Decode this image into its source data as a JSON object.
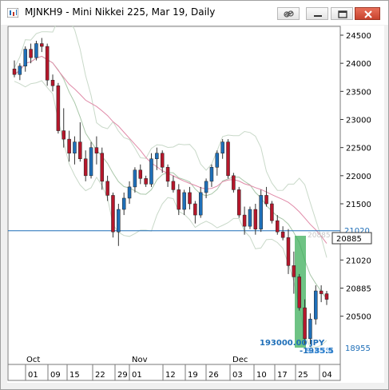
{
  "window": {
    "title": "MJNKH9 - Mini Nikkei 225, Mar 19, Daily",
    "buttons": [
      "link",
      "minimize",
      "restore",
      "close"
    ]
  },
  "chart_data": {
    "type": "candlestick",
    "instrument": "MJNKH9",
    "y_axis": {
      "labels": [
        "24500",
        "24000",
        "23500",
        "23000",
        "22500",
        "22000",
        "21500",
        "21020",
        "20885",
        "20500",
        "20000",
        "19500",
        "18955"
      ],
      "ticks": [
        24500,
        24000,
        23500,
        23000,
        22500,
        22000,
        21500,
        20500,
        20000,
        19500
      ],
      "range": [
        18700,
        24750
      ],
      "current_price": "20885",
      "horizontal_line_label": "21020",
      "horizontal_line_value": 21020,
      "lowest_label": "18955",
      "lowest_value": 18955
    },
    "x_axis": {
      "months": [
        "Oct",
        "Nov",
        "Dec"
      ],
      "day_labels": [
        "01",
        "09",
        "15",
        "22",
        "29",
        "01",
        "12",
        "19",
        "26",
        "03",
        "10",
        "17",
        "25",
        "04"
      ]
    },
    "overlays": [
      "moving-average-fast",
      "moving-average-slow",
      "bollinger-upper",
      "bollinger-lower"
    ],
    "measurement": {
      "text_1": "193000.00 JPY",
      "text_2": "9.85%",
      "text_3": "-1935.5"
    },
    "candles": [
      [
        23900,
        24050,
        23750,
        23800
      ],
      [
        23800,
        24000,
        23700,
        23950
      ],
      [
        23950,
        24300,
        23850,
        24250
      ],
      [
        24250,
        24350,
        24000,
        24100
      ],
      [
        24100,
        24400,
        24050,
        24350
      ],
      [
        24350,
        24450,
        24200,
        24300
      ],
      [
        24300,
        24350,
        23600,
        23700
      ],
      [
        23700,
        23800,
        23500,
        23600
      ],
      [
        23600,
        23650,
        22750,
        22800
      ],
      [
        22800,
        23200,
        22500,
        22650
      ],
      [
        22650,
        22800,
        22250,
        22400
      ],
      [
        22400,
        22700,
        22200,
        22600
      ],
      [
        22600,
        22950,
        22250,
        22300
      ],
      [
        22300,
        22450,
        21900,
        22000
      ],
      [
        22000,
        22600,
        21950,
        22500
      ],
      [
        22500,
        22700,
        22200,
        22400
      ],
      [
        22400,
        22500,
        21750,
        21900
      ],
      [
        21900,
        22000,
        21550,
        21650
      ],
      [
        21650,
        21700,
        20900,
        21000
      ],
      [
        21000,
        21500,
        20750,
        21400
      ],
      [
        21400,
        21700,
        21300,
        21600
      ],
      [
        21600,
        21900,
        21500,
        21800
      ],
      [
        21800,
        22150,
        21700,
        22100
      ],
      [
        22100,
        22200,
        21850,
        21950
      ],
      [
        21950,
        22000,
        21800,
        21850
      ],
      [
        21850,
        22400,
        21800,
        22300
      ],
      [
        22300,
        22500,
        22100,
        22400
      ],
      [
        22400,
        22450,
        22050,
        22150
      ],
      [
        22150,
        22200,
        21800,
        21900
      ],
      [
        21900,
        22000,
        21700,
        21750
      ],
      [
        21750,
        21850,
        21300,
        21400
      ],
      [
        21400,
        21750,
        21300,
        21700
      ],
      [
        21700,
        21800,
        21400,
        21500
      ],
      [
        21500,
        21550,
        21150,
        21300
      ],
      [
        21300,
        21800,
        21250,
        21700
      ],
      [
        21700,
        21950,
        21600,
        21900
      ],
      [
        21900,
        22200,
        21800,
        22150
      ],
      [
        22150,
        22450,
        22000,
        22400
      ],
      [
        22400,
        22650,
        22300,
        22600
      ],
      [
        22600,
        22650,
        21950,
        22000
      ],
      [
        22000,
        22050,
        21700,
        21750
      ],
      [
        21750,
        21800,
        21250,
        21300
      ],
      [
        21300,
        21450,
        20950,
        21100
      ],
      [
        21100,
        21450,
        21050,
        21400
      ],
      [
        21400,
        21500,
        20950,
        21050
      ],
      [
        21050,
        21750,
        21000,
        21650
      ],
      [
        21650,
        21800,
        21450,
        21500
      ],
      [
        21500,
        21550,
        21150,
        21200
      ],
      [
        21200,
        21300,
        20950,
        21000
      ],
      [
        21000,
        21100,
        20850,
        20900
      ],
      [
        20900,
        21050,
        20250,
        20400
      ],
      [
        20400,
        20650,
        19900,
        20200
      ],
      [
        20200,
        20250,
        19600,
        19650
      ],
      [
        19650,
        19800,
        19000,
        19100
      ],
      [
        19100,
        19550,
        19000,
        19450
      ],
      [
        19450,
        20050,
        19350,
        19950
      ],
      [
        19950,
        20050,
        19750,
        19900
      ],
      [
        19900,
        19950,
        19700,
        19800
      ]
    ]
  }
}
